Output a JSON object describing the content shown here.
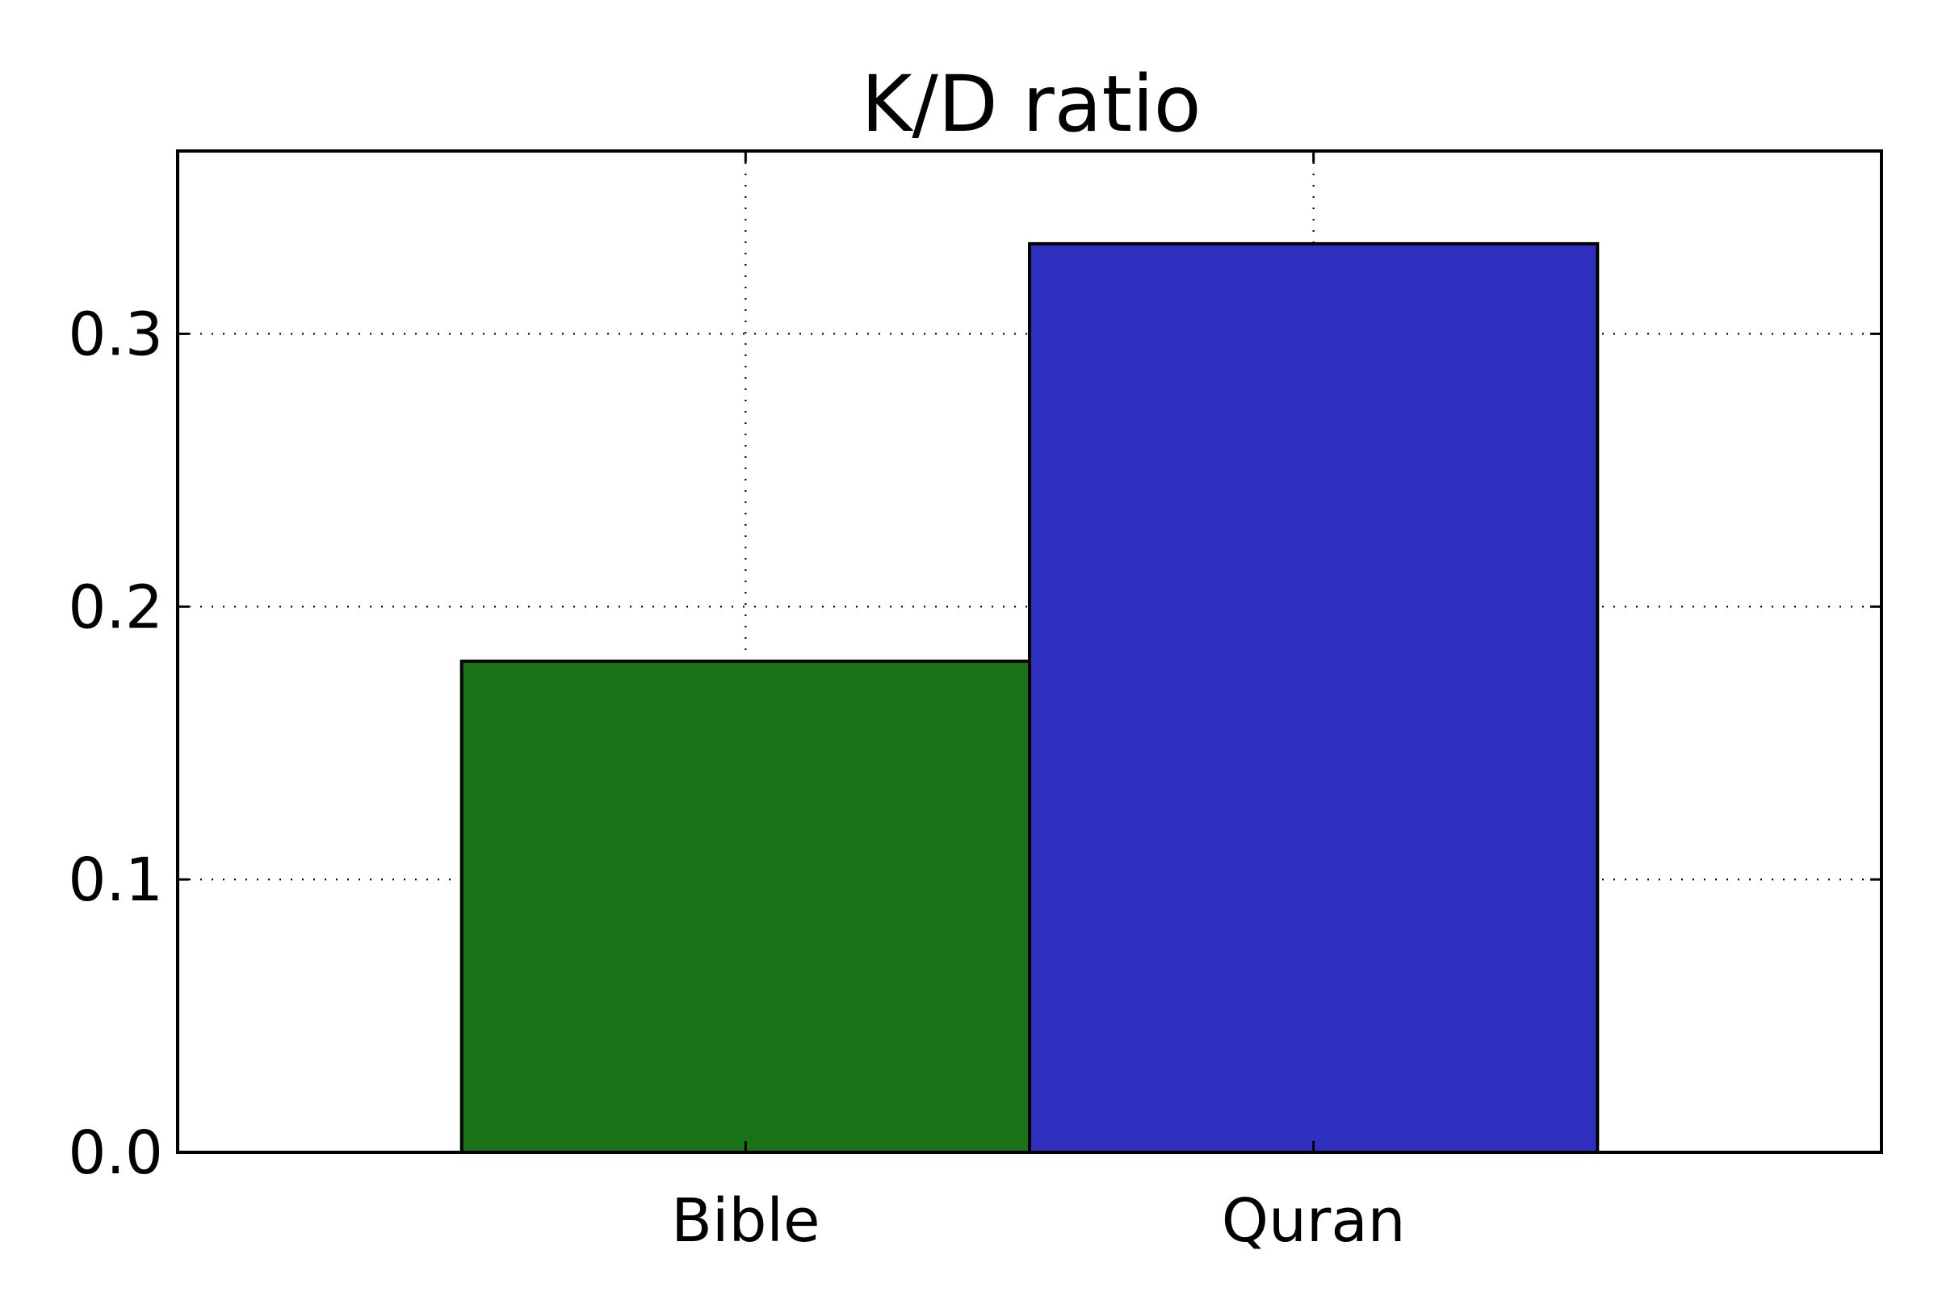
{
  "chart_data": {
    "type": "bar",
    "title": "K/D ratio",
    "xlabel": "",
    "ylabel": "",
    "categories": [
      "Bible",
      "Quran"
    ],
    "values": [
      0.18,
      0.333
    ],
    "colors": [
      "#1a7219",
      "#2f2fbf"
    ],
    "ylim": [
      0,
      0.367
    ],
    "yticks": [
      0.0,
      0.1,
      0.2,
      0.3
    ],
    "ytick_labels": [
      "0.0",
      "0.1",
      "0.2",
      "0.3"
    ],
    "grid": true,
    "legend": "none"
  }
}
